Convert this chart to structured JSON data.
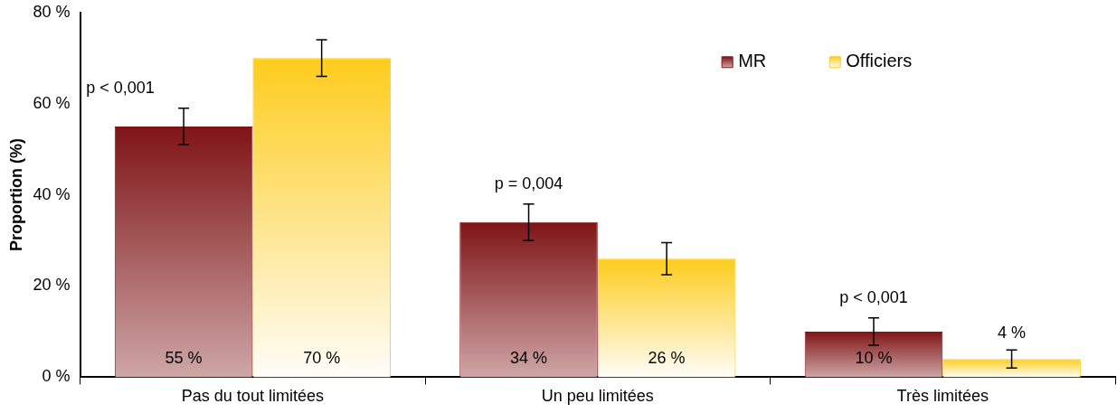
{
  "chart_data": {
    "type": "bar",
    "ylabel": "Proportion (%)",
    "categories": [
      "Pas du tout limitées",
      "Un peu limitées",
      "Très limitées"
    ],
    "series": [
      {
        "name": "MR",
        "color": "#7f1416",
        "values": [
          55,
          34,
          10
        ],
        "errors": [
          4,
          4,
          3
        ],
        "value_labels": [
          "55 %",
          "34 %",
          "10 %"
        ]
      },
      {
        "name": "Officiers",
        "color": "#fdcc1c",
        "values": [
          70,
          26,
          4
        ],
        "errors": [
          4,
          3.5,
          2
        ],
        "value_labels": [
          "70 %",
          "26 %",
          "4 %"
        ]
      }
    ],
    "ylim": [
      0,
      80
    ],
    "yticks": [
      {
        "value": 0,
        "label": "0 %"
      },
      {
        "value": 20,
        "label": "20 %"
      },
      {
        "value": 40,
        "label": "40 %"
      },
      {
        "value": 60,
        "label": "60 %"
      },
      {
        "value": 80,
        "label": "80 %"
      }
    ],
    "legend": "top right",
    "annotations": [
      "p < 0,001",
      "p = 0,004",
      "p < 0,001"
    ]
  }
}
